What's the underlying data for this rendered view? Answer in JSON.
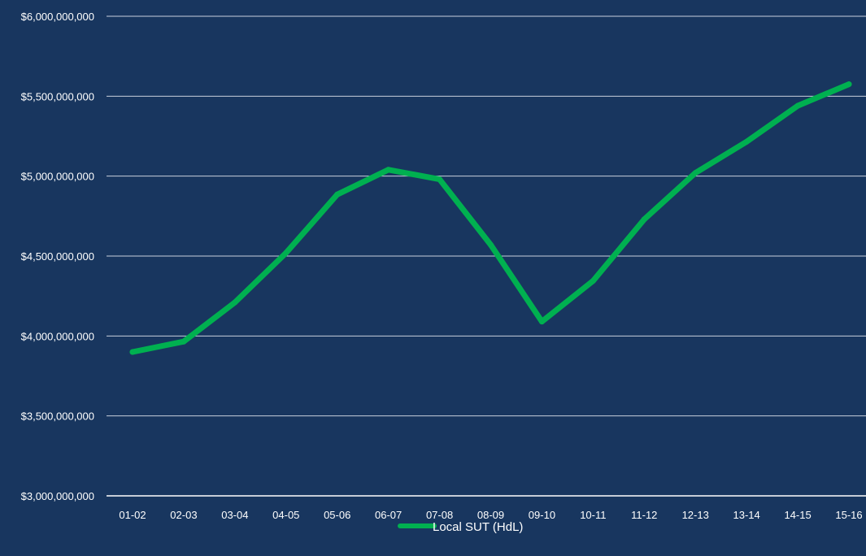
{
  "chart_data": {
    "type": "line",
    "categories": [
      "01-02",
      "02-03",
      "03-04",
      "04-05",
      "05-06",
      "06-07",
      "07-08",
      "08-09",
      "09-10",
      "10-11",
      "11-12",
      "12-13",
      "13-14",
      "14-15",
      "15-16"
    ],
    "series": [
      {
        "name": "Local SUT (HdL)",
        "color": "#00b050",
        "values": [
          3900000000,
          3965000000,
          4210000000,
          4520000000,
          4885000000,
          5040000000,
          4980000000,
          4570000000,
          4090000000,
          4345000000,
          4730000000,
          5020000000,
          5215000000,
          5440000000,
          5575000000
        ]
      }
    ],
    "ylim": [
      3000000000,
      6000000000
    ],
    "yticks": [
      3000000000,
      3500000000,
      4000000000,
      4500000000,
      5000000000,
      5500000000,
      6000000000
    ],
    "ytick_labels": [
      "$3,000,000,000",
      "$3,500,000,000",
      "$4,000,000,000",
      "$4,500,000,000",
      "$5,000,000,000",
      "$5,500,000,000",
      "$6,000,000,000"
    ],
    "grid": true,
    "legend_position": "bottom",
    "colors": {
      "background": "#18365f",
      "gridline": "#c8d0dc",
      "text": "#ffffff"
    }
  }
}
